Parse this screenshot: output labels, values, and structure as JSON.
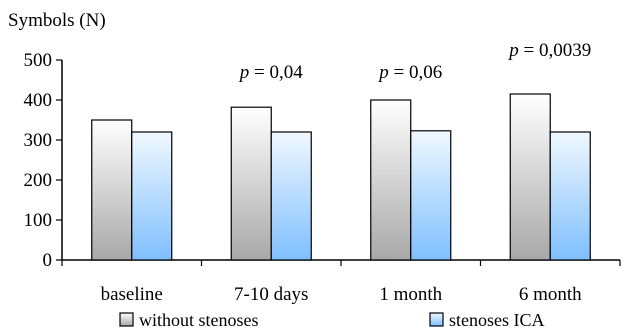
{
  "chart_data": {
    "type": "bar",
    "ylabel": "Symbols (N)",
    "ylim": [
      0,
      500
    ],
    "yticks": [
      0,
      100,
      200,
      300,
      400,
      500
    ],
    "categories": [
      "baseline",
      "7-10 days",
      "1 month",
      "6 month"
    ],
    "series": [
      {
        "name": "without stenoses",
        "values": [
          350,
          382,
          400,
          415
        ],
        "color_top": "#ffffff",
        "color_bottom": "#a8a8a8"
      },
      {
        "name": "stenoses ICA",
        "values": [
          320,
          320,
          323,
          320
        ],
        "color_top": "#f0f8ff",
        "color_bottom": "#7fbfff"
      }
    ],
    "annotations": [
      {
        "category": "7-10 days",
        "p_label": "p",
        "text": " = 0,04"
      },
      {
        "category": "1 month",
        "p_label": "p",
        "text": " = 0,06"
      },
      {
        "category": "6 month",
        "p_label": "p",
        "text": " = 0,0039"
      }
    ],
    "legend_position": "bottom",
    "grid": false
  }
}
